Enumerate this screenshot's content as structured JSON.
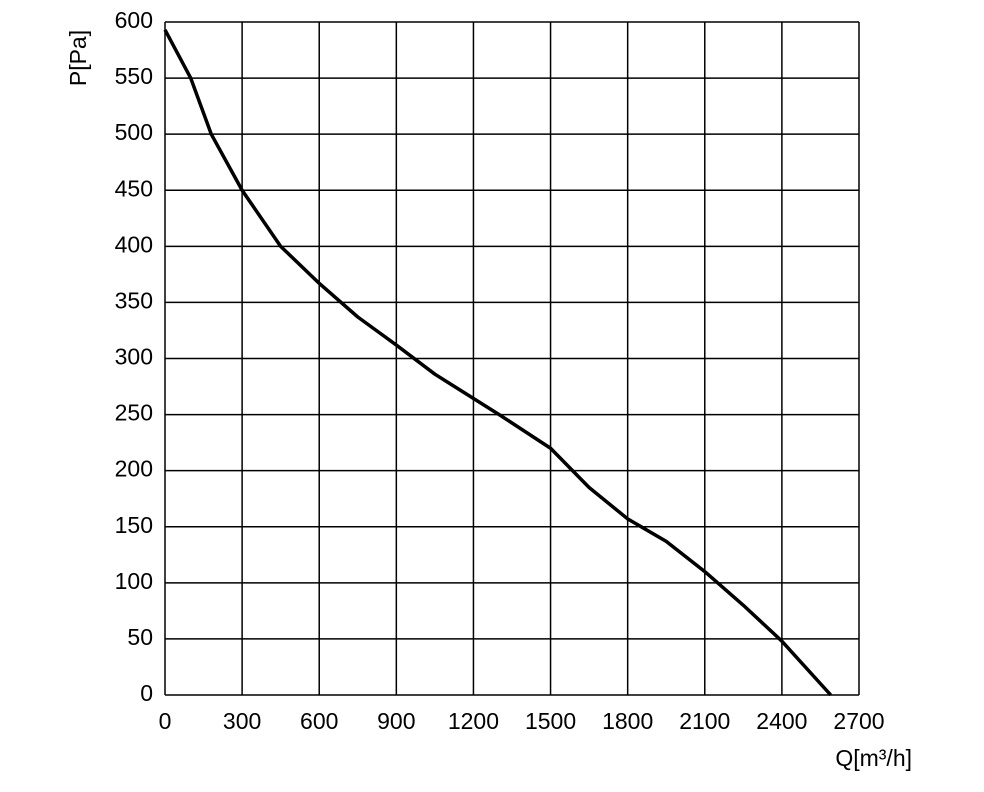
{
  "chart_data": {
    "type": "line",
    "x_label": "Q[m³/h]",
    "y_label": "P[Pa]",
    "series": [
      {
        "color": "#000000",
        "x": [
          0,
          100,
          180,
          300,
          450,
          600,
          750,
          900,
          1050,
          1300,
          1500,
          1650,
          1800,
          1950,
          2100,
          2250,
          2400,
          2590
        ],
        "values": [
          593,
          550,
          500,
          450,
          400,
          367,
          337,
          312,
          286,
          250,
          220,
          185,
          157,
          137,
          110,
          80,
          48,
          0
        ]
      }
    ],
    "xlim": [
      0,
      2700
    ],
    "xticks": [
      0,
      300,
      600,
      900,
      1200,
      1500,
      1800,
      2100,
      2400,
      2700
    ],
    "ylim": [
      0,
      600
    ],
    "yticks": [
      0,
      50,
      100,
      150,
      200,
      250,
      300,
      350,
      400,
      450,
      500,
      550,
      600
    ],
    "grid": true
  }
}
